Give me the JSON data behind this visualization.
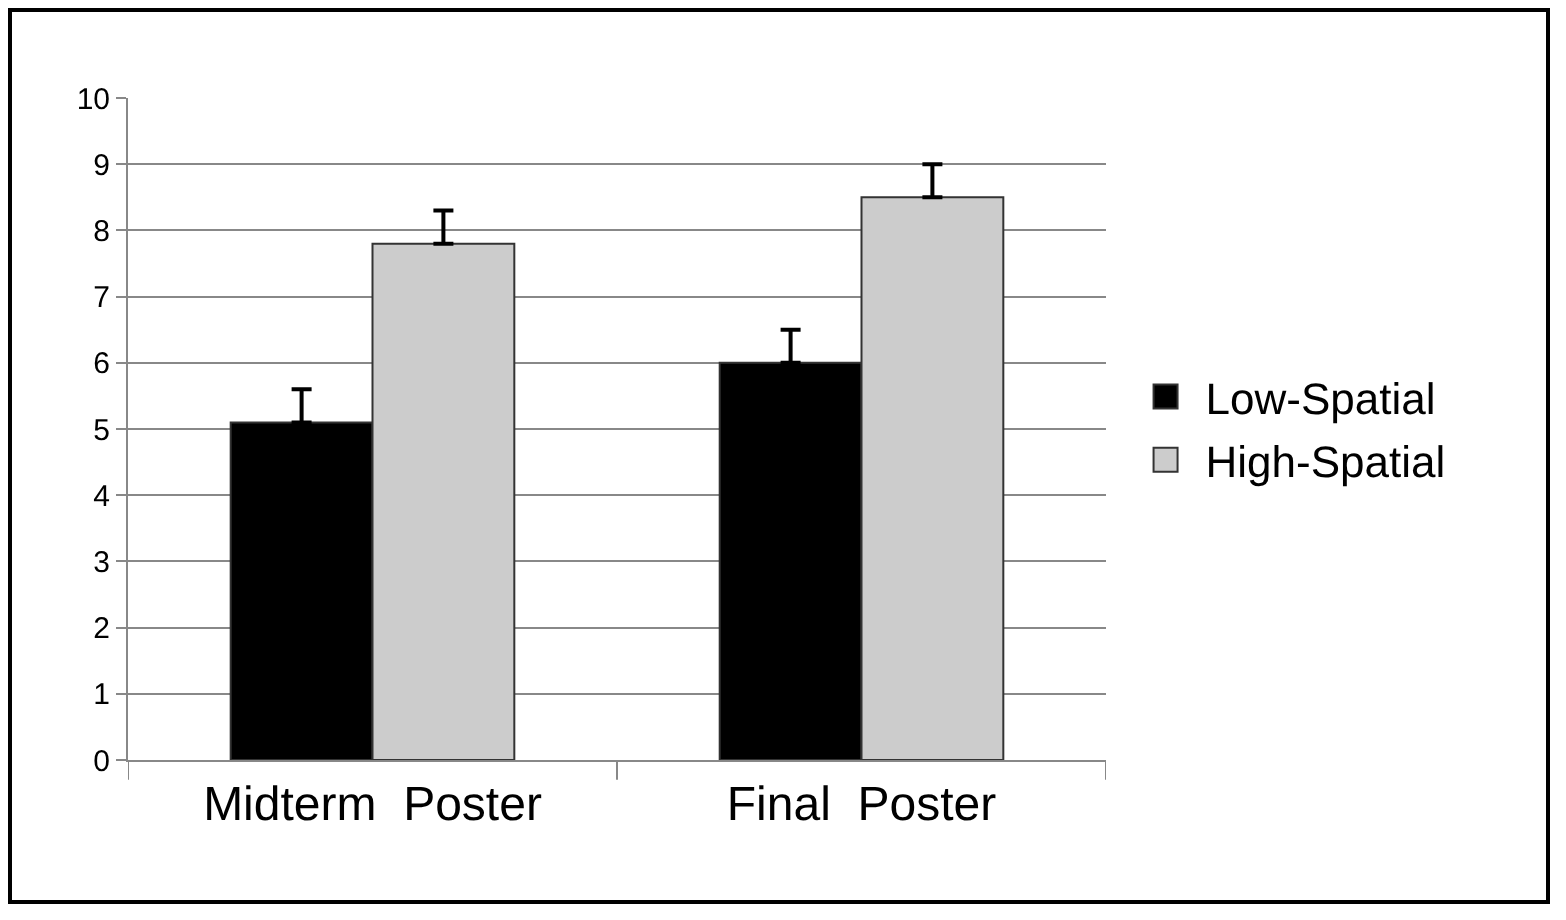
{
  "chart_data": {
    "type": "bar",
    "categories": [
      "Midterm  Poster",
      "Final  Poster"
    ],
    "series": [
      {
        "name": "Low-Spatial",
        "color": "#000000",
        "values": [
          5.1,
          6.0
        ],
        "errors": [
          [
            5.1,
            5.6
          ],
          [
            6.0,
            6.5
          ]
        ]
      },
      {
        "name": "High-Spatial",
        "color": "#cccccc",
        "values": [
          7.8,
          8.5
        ],
        "errors": [
          [
            7.8,
            8.3
          ],
          [
            8.5,
            9.0
          ]
        ]
      }
    ],
    "ylim": [
      0,
      10
    ],
    "yticks": [
      0,
      1,
      2,
      3,
      4,
      5,
      6,
      7,
      8,
      9,
      10
    ],
    "grid": "y",
    "legend": "right"
  }
}
